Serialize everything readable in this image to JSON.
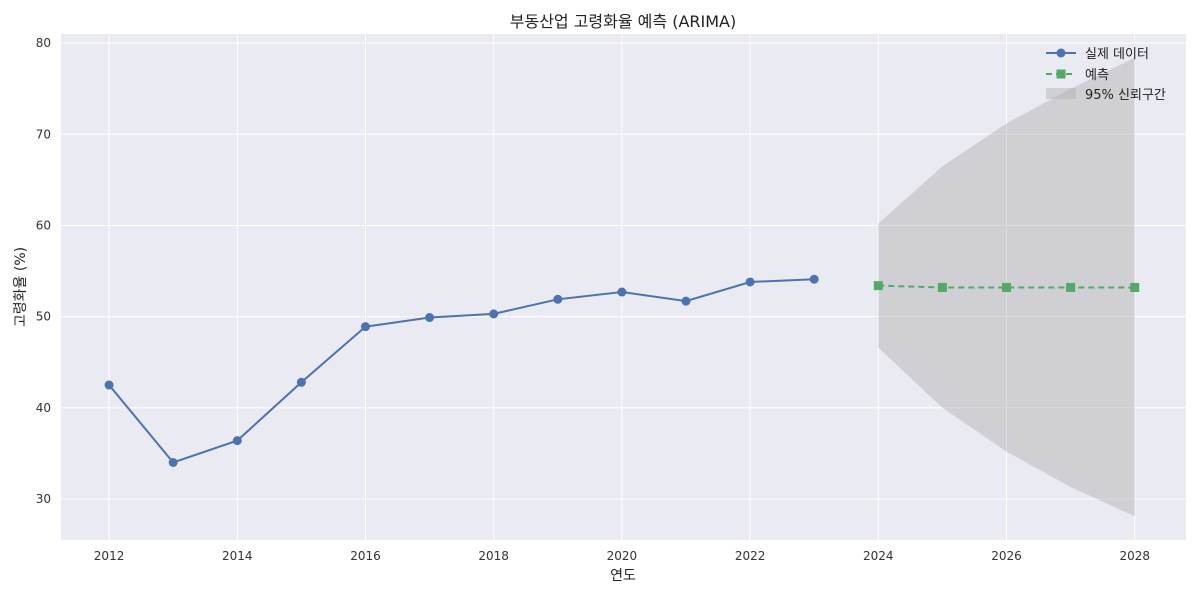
{
  "chart_data": {
    "type": "line",
    "title": "부동산업 고령화율 예측 (ARIMA)",
    "xlabel": "연도",
    "ylabel": "고령화율 (%)",
    "xlim": [
      2011.25,
      2028.8
    ],
    "ylim": [
      25.5,
      81
    ],
    "xticks": [
      2012,
      2014,
      2016,
      2018,
      2020,
      2022,
      2024,
      2026,
      2028
    ],
    "yticks": [
      30,
      40,
      50,
      60,
      70,
      80
    ],
    "grid": true,
    "legend_position": "top-right",
    "series": [
      {
        "name": "실제 데이터",
        "style": "solid",
        "marker": "circle",
        "color": "#4c72b0",
        "x": [
          2012,
          2013,
          2014,
          2015,
          2016,
          2017,
          2018,
          2019,
          2020,
          2021,
          2022,
          2023
        ],
        "y": [
          42.5,
          34.0,
          36.4,
          42.8,
          48.9,
          49.9,
          50.3,
          51.9,
          52.7,
          51.7,
          53.8,
          54.1
        ]
      },
      {
        "name": "예측",
        "style": "dashed",
        "marker": "square",
        "color": "#55a868",
        "x": [
          2024,
          2025,
          2026,
          2027,
          2028
        ],
        "y": [
          53.4,
          53.2,
          53.2,
          53.2,
          53.2
        ]
      }
    ],
    "confidence_band": {
      "name": "95% 신뢰구간",
      "color": "#b0b0b0",
      "x": [
        2024,
        2025,
        2026,
        2027,
        2028
      ],
      "lower": [
        46.6,
        40.0,
        35.2,
        31.3,
        28.1
      ],
      "upper": [
        60.2,
        66.5,
        71.2,
        75.0,
        78.4
      ]
    }
  }
}
